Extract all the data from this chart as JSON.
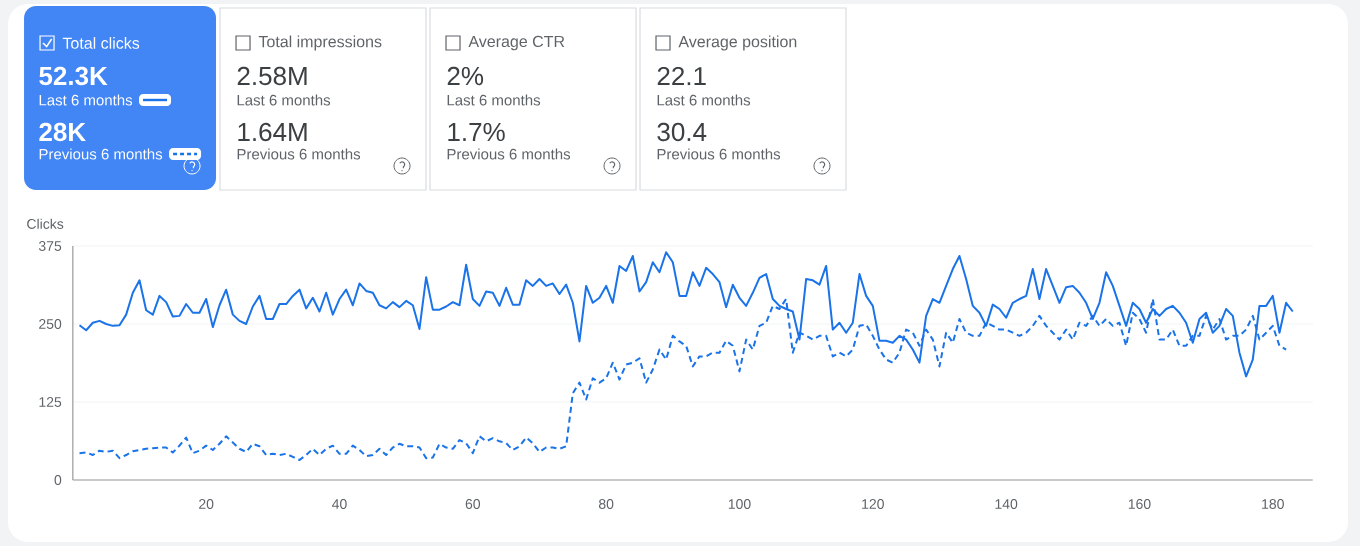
{
  "chart_data": {
    "type": "line",
    "ylabel": "Clicks",
    "annotations": [
      "Total clicks",
      "52.3K",
      "28K",
      "Total impressions",
      "2.58M",
      "Last 6 months",
      "1.64M",
      "Previous 6 months",
      "Average CTR",
      "2%",
      "Last 6 months",
      "1.7%",
      "Previous 6 months",
      "Average position",
      "22.1",
      "Last 6 months",
      "30.4",
      "Previous 6 months"
    ],
    "legend": "top left",
    "grid": "y",
    "xlim": [
      0,
      186
    ],
    "xticks": [
      20,
      40,
      60,
      80,
      100,
      120,
      140,
      160,
      180
    ],
    "ylim": [
      0,
      375
    ],
    "yticks": [
      0,
      125,
      250,
      375
    ],
    "series": [
      {
        "name": "Last 6 months",
        "color": "#1a73e8",
        "line_style": "solid",
        "x": [
          1,
          2,
          3,
          4,
          5,
          6,
          7,
          8,
          9,
          10,
          11,
          12,
          13,
          14,
          15,
          16,
          17,
          18,
          19,
          20,
          21,
          22,
          23,
          24,
          25,
          26,
          27,
          28,
          29,
          30,
          31,
          32,
          33,
          34,
          35,
          36,
          37,
          38,
          39,
          40,
          41,
          42,
          43,
          44,
          45,
          46,
          47,
          48,
          49,
          50,
          51,
          52,
          53,
          54,
          55,
          56,
          57,
          58,
          59,
          60,
          61,
          62,
          63,
          64,
          65,
          66,
          67,
          68,
          69,
          70,
          71,
          72,
          73,
          74,
          75,
          76,
          77,
          78,
          79,
          80,
          81,
          82,
          83,
          84,
          85,
          86,
          87,
          88,
          89,
          90,
          91,
          92,
          93,
          94,
          95,
          96,
          97,
          98,
          99,
          100,
          101,
          102,
          103,
          104,
          105,
          106,
          107,
          108,
          109,
          110,
          111,
          112,
          113,
          114,
          115,
          116,
          117,
          118,
          119,
          120,
          121,
          122,
          123,
          124,
          125,
          126,
          127,
          128,
          129,
          130,
          131,
          132,
          133,
          134,
          135,
          136,
          137,
          138,
          139,
          140,
          141,
          142,
          143,
          144,
          145,
          146,
          147,
          148,
          149,
          150,
          151,
          152,
          153,
          154,
          155,
          156,
          157,
          158,
          159,
          160,
          161,
          162,
          163,
          164,
          165,
          166,
          167,
          168,
          169,
          170,
          171,
          172,
          173,
          174,
          175,
          176,
          177,
          178,
          179,
          180,
          181,
          182,
          183
        ],
        "values": [
          248,
          240,
          252,
          255,
          250,
          247,
          248,
          265,
          300,
          320,
          272,
          265,
          295,
          285,
          262,
          263,
          282,
          268,
          268,
          290,
          245,
          280,
          305,
          265,
          255,
          250,
          278,
          295,
          258,
          258,
          282,
          282,
          295,
          305,
          275,
          292,
          270,
          300,
          265,
          290,
          305,
          280,
          315,
          303,
          300,
          280,
          275,
          285,
          277,
          287,
          280,
          242,
          325,
          273,
          273,
          278,
          285,
          280,
          345,
          290,
          279,
          302,
          300,
          279,
          308,
          281,
          281,
          320,
          311,
          322,
          311,
          315,
          298,
          313,
          284,
          222,
          311,
          284,
          292,
          311,
          284,
          343,
          335,
          359,
          302,
          317,
          349,
          333,
          365,
          349,
          295,
          295,
          333,
          311,
          340,
          330,
          317,
          277,
          313,
          292,
          279,
          300,
          324,
          330,
          290,
          279,
          274,
          270,
          225,
          322,
          320,
          313,
          343,
          241,
          252,
          236,
          252,
          330,
          295,
          279,
          223,
          223,
          220,
          231,
          225,
          209,
          188,
          263,
          290,
          284,
          311,
          338,
          359,
          322,
          279,
          268,
          247,
          281,
          274,
          260,
          284,
          290,
          295,
          338,
          290,
          338,
          311,
          284,
          309,
          311,
          300,
          284,
          258,
          284,
          333,
          311,
          279,
          247,
          284,
          274,
          252,
          274,
          263,
          274,
          279,
          268,
          252,
          220,
          258,
          268,
          236,
          247,
          274,
          263,
          204,
          166,
          193,
          279,
          279,
          295,
          236,
          284,
          270
        ]
      },
      {
        "name": "Previous 6 months",
        "color": "#1a73e8",
        "line_style": "dashed",
        "x": [
          1,
          2,
          3,
          4,
          5,
          6,
          7,
          8,
          9,
          10,
          11,
          12,
          13,
          14,
          15,
          16,
          17,
          18,
          19,
          20,
          21,
          22,
          23,
          24,
          25,
          26,
          27,
          28,
          29,
          30,
          31,
          32,
          33,
          34,
          35,
          36,
          37,
          38,
          39,
          40,
          41,
          42,
          43,
          44,
          45,
          46,
          47,
          48,
          49,
          50,
          51,
          52,
          53,
          54,
          55,
          56,
          57,
          58,
          59,
          60,
          61,
          62,
          63,
          64,
          65,
          66,
          67,
          68,
          69,
          70,
          71,
          72,
          73,
          74,
          75,
          76,
          77,
          78,
          79,
          80,
          81,
          82,
          83,
          84,
          85,
          86,
          87,
          88,
          89,
          90,
          91,
          92,
          93,
          94,
          95,
          96,
          97,
          98,
          99,
          100,
          101,
          102,
          103,
          104,
          105,
          106,
          107,
          108,
          109,
          110,
          111,
          112,
          113,
          114,
          115,
          116,
          117,
          118,
          119,
          120,
          121,
          122,
          123,
          124,
          125,
          126,
          127,
          128,
          129,
          130,
          131,
          132,
          133,
          134,
          135,
          136,
          137,
          138,
          139,
          140,
          141,
          142,
          143,
          144,
          145,
          146,
          147,
          148,
          149,
          150,
          151,
          152,
          153,
          154,
          155,
          156,
          157,
          158,
          159,
          160,
          161,
          162,
          163,
          164,
          165,
          166,
          167,
          168,
          169,
          170,
          171,
          172,
          173,
          174,
          175,
          176,
          177,
          178,
          179,
          180,
          181,
          182
        ],
        "values": [
          43,
          44,
          40,
          47,
          45,
          47,
          35,
          40,
          46,
          48,
          50,
          51,
          52,
          52,
          44,
          55,
          68,
          43,
          47,
          55,
          48,
          58,
          70,
          60,
          50,
          45,
          58,
          54,
          40,
          42,
          40,
          42,
          37,
          32,
          40,
          50,
          40,
          50,
          55,
          42,
          42,
          55,
          48,
          38,
          40,
          50,
          40,
          52,
          58,
          54,
          54,
          52,
          35,
          36,
          58,
          52,
          50,
          64,
          59,
          43,
          70,
          62,
          67,
          62,
          59,
          48,
          54,
          68,
          59,
          45,
          52,
          52,
          50,
          54,
          139,
          156,
          129,
          163,
          156,
          163,
          188,
          161,
          185,
          188,
          195,
          156,
          177,
          209,
          193,
          231,
          222,
          215,
          182,
          198,
          198,
          204,
          204,
          223,
          215,
          174,
          225,
          209,
          247,
          252,
          279,
          274,
          290,
          204,
          236,
          231,
          225,
          231,
          231,
          198,
          204,
          198,
          209,
          247,
          249,
          231,
          209,
          193,
          188,
          204,
          241,
          236,
          215,
          241,
          225,
          182,
          236,
          220,
          258,
          236,
          231,
          231,
          252,
          247,
          241,
          241,
          236,
          231,
          236,
          247,
          263,
          247,
          236,
          225,
          241,
          225,
          252,
          247,
          263,
          247,
          258,
          247,
          252,
          215,
          268,
          258,
          236,
          290,
          225,
          225,
          241,
          215,
          215,
          231,
          231,
          263,
          241,
          258,
          225,
          231,
          231,
          241,
          263,
          225,
          236,
          247,
          215,
          209
        ]
      }
    ]
  }
}
